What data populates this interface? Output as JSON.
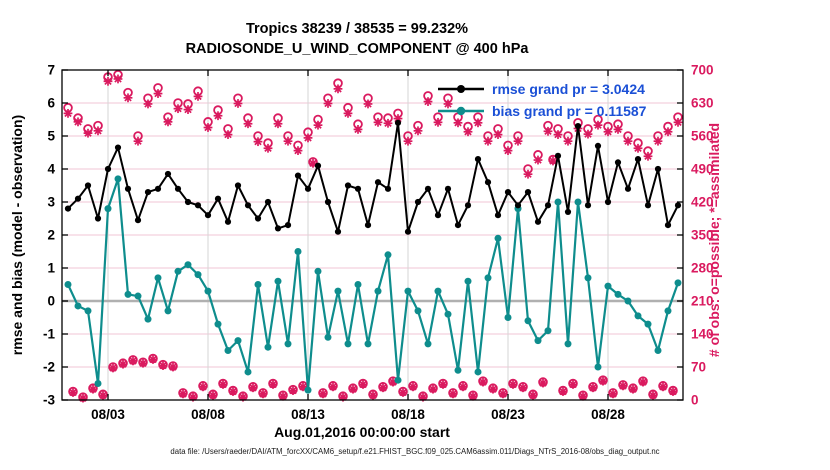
{
  "header": {
    "title_line1": "Tropics 38239 / 38535 = 99.232%",
    "title_line2": "RADIOSONDE_U_WIND_COMPONENT @ 400 hPa"
  },
  "legend": {
    "rmse_label": "rmse grand pr = 3.0424",
    "bias_label": "bias grand pr = 0.11587",
    "text_color": "#1b50d6"
  },
  "footer": {
    "data_file_note": "data file: /Users/raeder/DAI/ATM_forcXX/CAM6_setup/f.e21.FHIST_BGC.f09_025.CAM6assim.011/Diags_NTrS_2016-08/obs_diag_output.nc"
  },
  "chart_data": {
    "type": "line",
    "title": "Tropics 38239 / 38535 = 99.232%",
    "subtitle": "RADIOSONDE_U_WIND_COMPONENT @ 400 hPa",
    "xlabel": "Aug.01,2016 00:00:00 start",
    "ylabel_left": "rmse and bias (model - observation)",
    "ylabel_right": "# of obs: o=possible; *=assimilated",
    "ylim_left": [
      -3,
      7
    ],
    "ylim_right": [
      0,
      700
    ],
    "x_range_days": [
      0.7,
      31.75
    ],
    "x_ticks": [
      {
        "day": 3,
        "label": "08/03"
      },
      {
        "day": 8,
        "label": "08/08"
      },
      {
        "day": 13,
        "label": "08/13"
      },
      {
        "day": 18,
        "label": "08/18"
      },
      {
        "day": 23,
        "label": "08/23"
      },
      {
        "day": 28,
        "label": "08/28"
      }
    ],
    "y_left_ticks": [
      -3,
      -2,
      -1,
      0,
      1,
      2,
      3,
      4,
      5,
      6,
      7
    ],
    "y_right_ticks": [
      0,
      70,
      140,
      210,
      280,
      350,
      420,
      490,
      560,
      630,
      700
    ],
    "grid": {
      "horizontal_color": "#f2c6d4",
      "vertical_color": "#d6d6d6",
      "zero_line_color": "#b0b0b0"
    },
    "x_days": [
      1,
      1.5,
      2,
      2.5,
      3,
      3.5,
      4,
      4.5,
      5,
      5.5,
      6,
      6.5,
      7,
      7.5,
      8,
      8.5,
      9,
      9.5,
      10,
      10.5,
      11,
      11.5,
      12,
      12.5,
      13,
      13.5,
      14,
      14.5,
      15,
      15.5,
      16,
      16.5,
      17,
      17.5,
      18,
      18.5,
      19,
      19.5,
      20,
      20.5,
      21,
      21.5,
      22,
      22.5,
      23,
      23.5,
      24,
      24.5,
      25,
      25.5,
      26,
      26.5,
      27,
      27.5,
      28,
      28.5,
      29,
      29.5,
      30,
      30.5,
      31,
      31.5
    ],
    "series": {
      "rmse": {
        "label": "rmse grand pr = 3.0424",
        "grand_mean": 3.0424,
        "color": "#000000",
        "axis": "left",
        "y": [
          2.8,
          3.1,
          3.5,
          2.5,
          4.0,
          4.65,
          3.4,
          2.45,
          3.3,
          3.4,
          3.85,
          3.4,
          3.0,
          2.9,
          2.6,
          3.1,
          2.4,
          3.5,
          2.9,
          2.5,
          3.0,
          2.2,
          2.3,
          3.8,
          3.4,
          4.1,
          3.0,
          2.1,
          3.5,
          3.4,
          2.3,
          3.6,
          3.4,
          5.4,
          2.1,
          3.0,
          3.4,
          2.6,
          3.4,
          2.3,
          2.9,
          4.3,
          3.6,
          2.6,
          3.3,
          2.9,
          3.3,
          2.4,
          2.9,
          4.4,
          2.7,
          5.3,
          2.9,
          4.7,
          3.0,
          4.2,
          3.4,
          4.3,
          2.9,
          4.0,
          2.3,
          2.9
        ]
      },
      "bias": {
        "label": "bias grand pr = 0.11587",
        "grand_mean": 0.11587,
        "color": "#0e8d8d",
        "axis": "left",
        "y": [
          0.5,
          -0.15,
          -0.3,
          -2.5,
          2.8,
          3.7,
          0.2,
          0.15,
          -0.55,
          0.7,
          -0.3,
          0.9,
          1.1,
          0.8,
          0.3,
          -0.7,
          -1.5,
          -1.2,
          -2.15,
          0.5,
          -1.4,
          0.6,
          -1.3,
          1.5,
          -2.7,
          0.9,
          -1.1,
          0.3,
          -1.3,
          0.5,
          -1.3,
          0.3,
          1.4,
          -2.4,
          0.3,
          -0.3,
          -1.3,
          0.3,
          -0.4,
          -2.1,
          0.6,
          -2.15,
          0.7,
          1.9,
          -0.5,
          2.8,
          -0.6,
          -1.2,
          -0.9,
          3.0,
          -1.3,
          3.0,
          0.7,
          -2.0,
          0.45,
          0.2,
          0,
          -0.45,
          -0.7,
          -1.5,
          -0.3,
          0.55
        ]
      },
      "obs_possible": {
        "label": "o=possible",
        "marker": "circle",
        "color": "#da1a5f",
        "axis": "right",
        "y": [
          620,
          598,
          575,
          582,
          685,
          690,
          652,
          560,
          640,
          662,
          600,
          630,
          628,
          655,
          590,
          615,
          575,
          640,
          598,
          560,
          545,
          598,
          560,
          540,
          568,
          595,
          640,
          672,
          620,
          585,
          640,
          600,
          598,
          608,
          560,
          582,
          645,
          600,
          640,
          600,
          580,
          600,
          560,
          575,
          540,
          560,
          490,
          520,
          582,
          575,
          560,
          588,
          575,
          595,
          580,
          585,
          560,
          545,
          528,
          560,
          580,
          600
        ]
      },
      "obs_assimilated": {
        "label": "*=assimilated",
        "marker": "asterisk",
        "color": "#da1a5f",
        "axis": "right",
        "y": [
          608,
          590,
          566,
          571,
          676,
          681,
          641,
          549,
          628,
          650,
          590,
          618,
          616,
          644,
          578,
          603,
          563,
          629,
          586,
          548,
          534,
          586,
          549,
          529,
          556,
          583,
          629,
          660,
          608,
          574,
          628,
          589,
          587,
          597,
          549,
          571,
          633,
          589,
          628,
          588,
          569,
          588,
          549,
          563,
          529,
          549,
          479,
          509,
          570,
          563,
          549,
          576,
          564,
          583,
          569,
          574,
          549,
          534,
          517,
          549,
          569,
          589
        ]
      },
      "obs_possible_offsynoptic": {
        "label": "o=possible (06Z/18Z)",
        "marker": "circle",
        "color": "#da1a5f",
        "axis": "right",
        "x": [
          1.25,
          1.75,
          2.25,
          2.75,
          3.25,
          3.75,
          4.25,
          4.75,
          5.25,
          5.75,
          6.25,
          6.75,
          7.25,
          7.75,
          8.25,
          8.75,
          9.25,
          9.75,
          10.25,
          10.75,
          11.25,
          11.75,
          12.25,
          12.75,
          13.25,
          13.75,
          14.25,
          14.75,
          15.25,
          15.75,
          16.25,
          16.75,
          17.25,
          17.75,
          18.25,
          18.75,
          19.25,
          19.75,
          20.25,
          20.75,
          21.25,
          21.75,
          22.25,
          22.75,
          23.25,
          23.75,
          24.25,
          24.75,
          25.25,
          25.75,
          26.25,
          26.75,
          27.25,
          27.75,
          28.25,
          28.75,
          29.25,
          29.75,
          30.25,
          30.75,
          31.25
        ],
        "y": [
          18,
          6,
          25,
          12,
          70,
          78,
          85,
          80,
          88,
          75,
          72,
          15,
          8,
          30,
          12,
          35,
          20,
          8,
          28,
          15,
          35,
          10,
          22,
          30,
          505,
          15,
          30,
          8,
          25,
          35,
          12,
          28,
          40,
          18,
          30,
          8,
          25,
          35,
          15,
          30,
          10,
          40,
          25,
          15,
          35,
          28,
          12,
          38,
          510,
          20,
          35,
          10,
          28,
          42,
          15,
          32,
          25,
          40,
          12,
          30,
          20
        ]
      },
      "obs_assimilated_offsynoptic": {
        "label": "*=assimilated (06Z/18Z)",
        "marker": "asterisk",
        "color": "#da1a5f",
        "axis": "right",
        "x": [
          1.25,
          1.75,
          2.25,
          2.75,
          3.25,
          3.75,
          4.25,
          4.75,
          5.25,
          5.75,
          6.25,
          6.75,
          7.25,
          7.75,
          8.25,
          8.75,
          9.25,
          9.75,
          10.25,
          10.75,
          11.25,
          11.75,
          12.25,
          12.75,
          13.25,
          13.75,
          14.25,
          14.75,
          15.25,
          15.75,
          16.25,
          16.75,
          17.25,
          17.75,
          18.25,
          18.75,
          19.25,
          19.75,
          20.25,
          20.75,
          21.25,
          21.75,
          22.25,
          22.75,
          23.25,
          23.75,
          24.25,
          24.75,
          25.25,
          25.75,
          26.25,
          26.75,
          27.25,
          27.75,
          28.25,
          28.75,
          29.25,
          29.75,
          30.25,
          30.75,
          31.25
        ],
        "y": [
          16,
          4,
          23,
          10,
          68,
          76,
          83,
          78,
          86,
          73,
          70,
          13,
          6,
          28,
          10,
          33,
          18,
          6,
          26,
          13,
          33,
          8,
          20,
          28,
          502,
          13,
          28,
          6,
          23,
          33,
          10,
          26,
          38,
          16,
          28,
          6,
          23,
          33,
          13,
          28,
          8,
          38,
          23,
          13,
          33,
          26,
          10,
          36,
          507,
          18,
          33,
          8,
          26,
          40,
          13,
          30,
          23,
          38,
          10,
          28,
          18
        ]
      }
    }
  }
}
